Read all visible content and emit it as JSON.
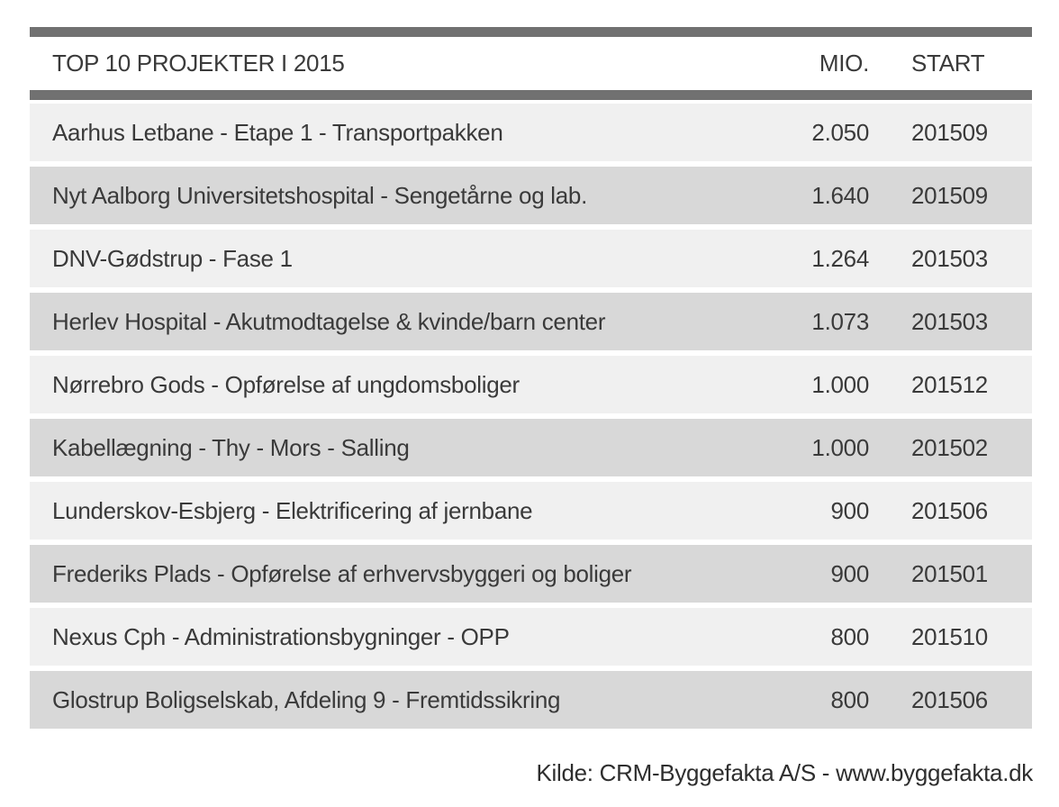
{
  "chart_data": {
    "type": "table",
    "title": "TOP 10 PROJEKTER I 2015",
    "columns": {
      "mio": "MIO.",
      "start": "START"
    },
    "rows": [
      {
        "name": "Aarhus Letbane - Etape 1 - Transportpakken",
        "mio": "2.050",
        "start": "201509"
      },
      {
        "name": "Nyt Aalborg Universitetshospital - Sengetårne og lab.",
        "mio": "1.640",
        "start": "201509"
      },
      {
        "name": "DNV-Gødstrup - Fase 1",
        "mio": "1.264",
        "start": "201503"
      },
      {
        "name": "Herlev Hospital - Akutmodtagelse & kvinde/barn center",
        "mio": "1.073",
        "start": "201503"
      },
      {
        "name": "Nørrebro Gods - Opførelse af ungdomsboliger",
        "mio": "1.000",
        "start": "201512"
      },
      {
        "name": "Kabellægning - Thy - Mors - Salling",
        "mio": "1.000",
        "start": "201502"
      },
      {
        "name": "Lunderskov-Esbjerg - Elektrificering af jernbane",
        "mio": "900",
        "start": "201506"
      },
      {
        "name": "Frederiks Plads - Opførelse af erhvervsbyggeri og boliger",
        "mio": "900",
        "start": "201501"
      },
      {
        "name": "Nexus Cph - Administrationsbygninger - OPP",
        "mio": "800",
        "start": "201510"
      },
      {
        "name": "Glostrup Boligselskab, Afdeling 9 - Fremtidssikring",
        "mio": "800",
        "start": "201506"
      }
    ],
    "footer_source": "Kilde: CRM-Byggefakta A/S - www.byggefakta.dk",
    "layout_hints": {
      "row_striping": [
        "light",
        "dark"
      ],
      "mio_alignment": "right",
      "start_alignment": "left"
    }
  },
  "colors": {
    "bar": "#717171",
    "row_light": "#f0f0f0",
    "row_dark": "#d8d8d8",
    "text": "#3a3a3a",
    "background": "#ffffff"
  }
}
